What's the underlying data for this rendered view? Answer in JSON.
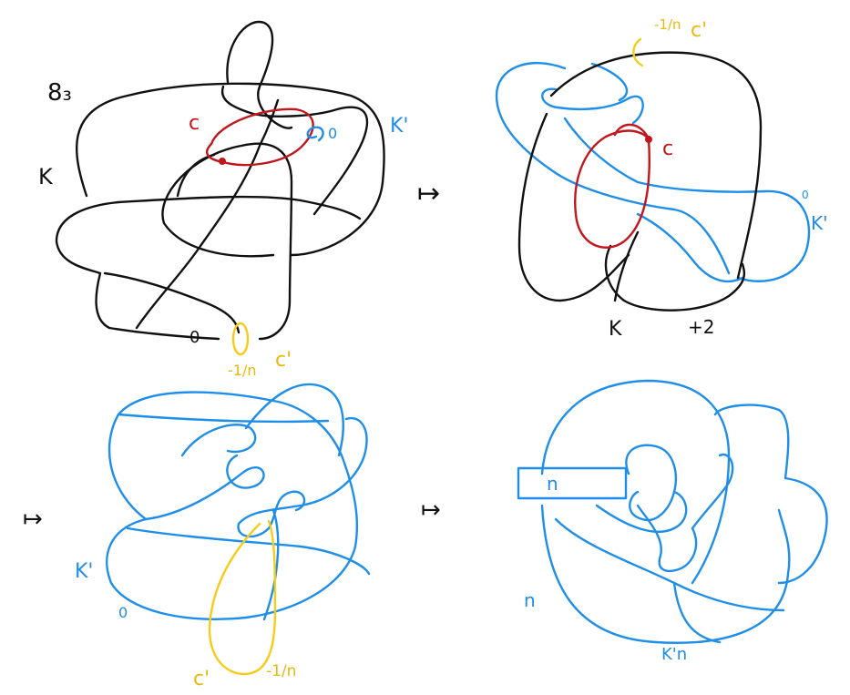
{
  "colors": {
    "black_knot": "#111111",
    "blue_knot": "#1f8ee8",
    "red_curve": "#c0161c",
    "yellow_curve": "#f5cc1a"
  },
  "panels": {
    "top_left": {
      "knot_label": "K",
      "knot_name": "8₃",
      "red_curve_label": "c",
      "blue_meridian_coeff": "0",
      "blue_knot_label": "K'",
      "surgery_coeff": "0",
      "yellow_coeff": "-1/n",
      "yellow_label": "c'"
    },
    "top_right": {
      "yellow_coeff": "-1/n",
      "yellow_label": "c'",
      "red_curve_label": "c",
      "blue_knot_label": "K'",
      "blue_coeff": "0",
      "knot_label": "K",
      "framing": "+2"
    },
    "bottom_left": {
      "blue_knot_label": "K'",
      "blue_coeff": "0",
      "yellow_label": "c'",
      "yellow_coeff": "-1/n"
    },
    "bottom_right": {
      "box_label": "n",
      "band_label": "n",
      "result_label": "K'n"
    }
  },
  "arrows": [
    "↦",
    "↦",
    "↦"
  ]
}
